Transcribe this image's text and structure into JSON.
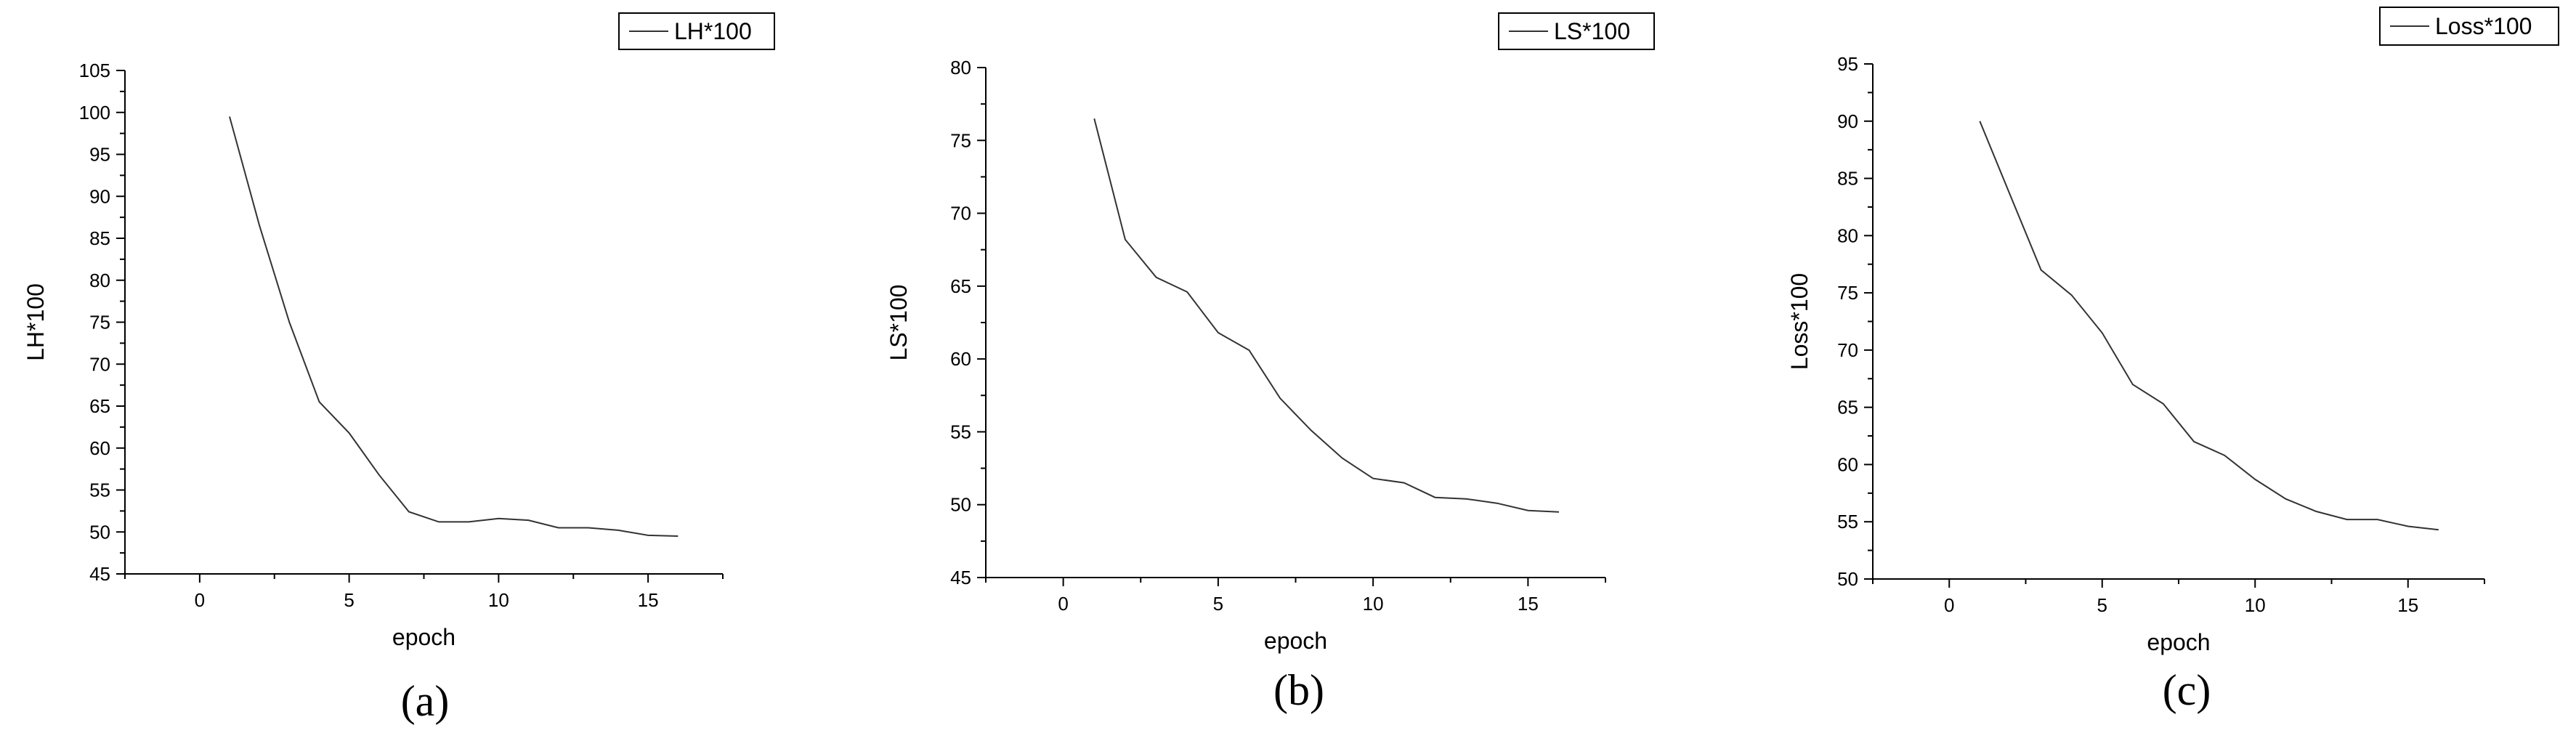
{
  "chart_data": [
    {
      "type": "line",
      "caption": "(a)",
      "xlabel": "epoch",
      "ylabel": "LH*100",
      "xlim": [
        -2.5,
        17.5
      ],
      "ylim": [
        45,
        105
      ],
      "xticks": [
        0,
        5,
        10,
        15
      ],
      "yticks": [
        45,
        50,
        55,
        60,
        65,
        70,
        75,
        80,
        85,
        90,
        95,
        100,
        105
      ],
      "legend_position": "top-right",
      "grid": false,
      "series": [
        {
          "name": "LH*100",
          "x": [
            1,
            2,
            3,
            4,
            5,
            6,
            7,
            8,
            9,
            10,
            11,
            12,
            13,
            14,
            15,
            16
          ],
          "y": [
            99.5,
            86.5,
            75.0,
            65.5,
            61.8,
            56.8,
            52.4,
            51.2,
            51.2,
            51.6,
            51.4,
            50.5,
            50.5,
            50.2,
            49.6,
            49.5
          ]
        }
      ]
    },
    {
      "type": "line",
      "caption": "(b)",
      "xlabel": "epoch",
      "ylabel": "LS*100",
      "xlim": [
        -2.5,
        17.5
      ],
      "ylim": [
        45,
        80
      ],
      "xticks": [
        0,
        5,
        10,
        15
      ],
      "yticks": [
        45,
        50,
        55,
        60,
        65,
        70,
        75,
        80
      ],
      "legend_position": "top-right",
      "grid": false,
      "series": [
        {
          "name": "LS*100",
          "x": [
            1,
            2,
            3,
            4,
            5,
            6,
            7,
            8,
            9,
            10,
            11,
            12,
            13,
            14,
            15,
            16
          ],
          "y": [
            76.5,
            68.2,
            65.6,
            64.6,
            61.8,
            60.6,
            57.3,
            55.1,
            53.2,
            51.8,
            51.5,
            50.5,
            50.4,
            50.1,
            49.6,
            49.5
          ]
        }
      ]
    },
    {
      "type": "line",
      "caption": "(c)",
      "xlabel": "epoch",
      "ylabel": "Loss*100",
      "xlim": [
        -2.5,
        17.5
      ],
      "ylim": [
        50,
        95
      ],
      "xticks": [
        0,
        5,
        10,
        15
      ],
      "yticks": [
        50,
        55,
        60,
        65,
        70,
        75,
        80,
        85,
        90,
        95
      ],
      "legend_position": "top-right",
      "grid": false,
      "series": [
        {
          "name": "Loss*100",
          "x": [
            1,
            2,
            3,
            4,
            5,
            6,
            7,
            8,
            9,
            10,
            11,
            12,
            13,
            14,
            15,
            16
          ],
          "y": [
            90.0,
            83.5,
            77.0,
            74.8,
            71.5,
            67.0,
            65.3,
            62.0,
            60.8,
            58.7,
            57.0,
            55.9,
            55.2,
            55.2,
            54.6,
            54.3
          ]
        }
      ]
    }
  ]
}
